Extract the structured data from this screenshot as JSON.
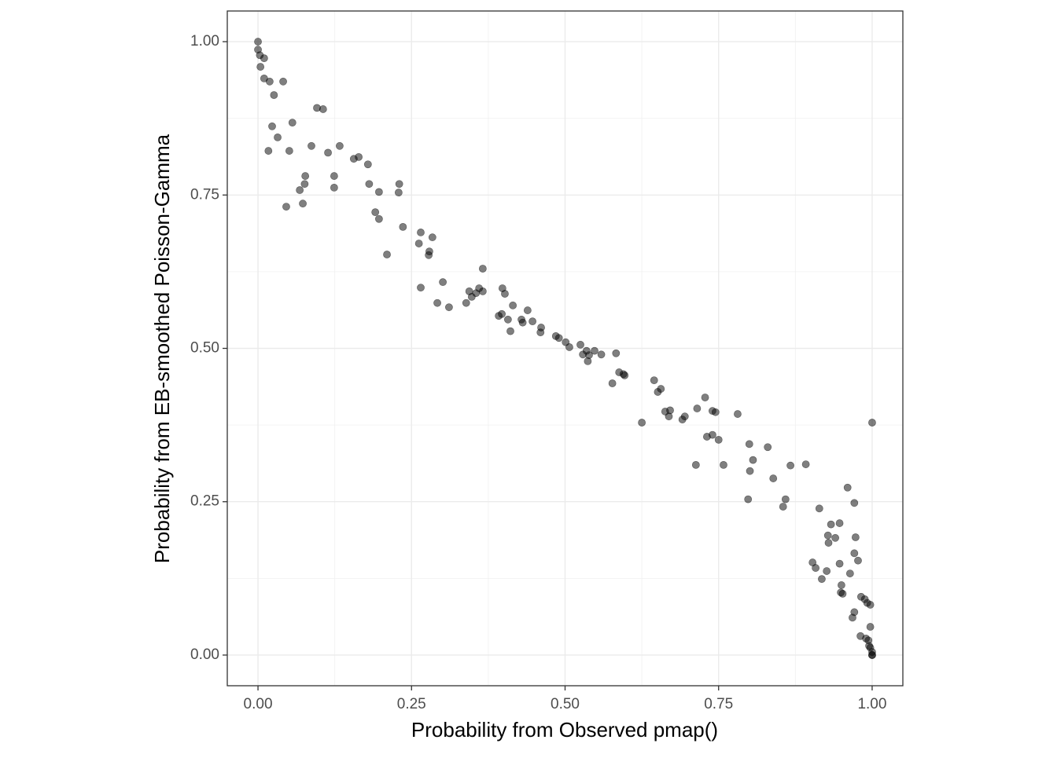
{
  "chart_data": {
    "type": "scatter",
    "xlabel": "Probability from Observed pmap()",
    "ylabel": "Probability from EB-smoothed Poisson-Gamma",
    "color": "#000000",
    "opacity": 0.5,
    "grid": true,
    "xlim": [
      -0.05,
      1.05
    ],
    "ylim": [
      -0.05,
      1.05
    ],
    "xticks": [
      {
        "value": 0,
        "label": "0.00"
      },
      {
        "value": 0.25,
        "label": "0.25"
      },
      {
        "value": 0.5,
        "label": "0.50"
      },
      {
        "value": 0.75,
        "label": "0.75"
      },
      {
        "value": 1,
        "label": "1.00"
      }
    ],
    "yticks": [
      {
        "value": 0,
        "label": "0.00"
      },
      {
        "value": 0.25,
        "label": "0.25"
      },
      {
        "value": 0.5,
        "label": "0.50"
      },
      {
        "value": 0.75,
        "label": "0.75"
      },
      {
        "value": 1,
        "label": "1.00"
      }
    ],
    "xminorticks": [
      0.125,
      0.375,
      0.625,
      0.875
    ],
    "yminorticks": [
      0.125,
      0.375,
      0.625,
      0.875
    ],
    "x": [
      0,
      0,
      0.003,
      0.01,
      0.004,
      0.01,
      0.019,
      0.041,
      0.026,
      0.096,
      0.106,
      0.023,
      0.056,
      0.032,
      0.017,
      0.051,
      0.087,
      0.114,
      0.133,
      0.156,
      0.164,
      0.179,
      0.077,
      0.124,
      0.076,
      0.181,
      0.23,
      0.068,
      0.124,
      0.197,
      0.229,
      0.046,
      0.073,
      0.191,
      0.197,
      0.236,
      0.265,
      0.284,
      0.262,
      0.279,
      0.278,
      0.21,
      0.366,
      0.301,
      0.265,
      0.36,
      0.355,
      0.344,
      0.348,
      0.366,
      0.398,
      0.402,
      0.292,
      0.311,
      0.339,
      0.415,
      0.397,
      0.392,
      0.407,
      0.439,
      0.429,
      0.431,
      0.447,
      0.461,
      0.46,
      0.411,
      0.485,
      0.49,
      0.501,
      0.507,
      0.525,
      0.535,
      0.548,
      0.529,
      0.539,
      0.559,
      0.583,
      0.537,
      0.577,
      0.588,
      0.595,
      0.597,
      0.625,
      0.645,
      0.656,
      0.651,
      0.663,
      0.671,
      0.669,
      0.691,
      0.695,
      0.728,
      0.715,
      0.74,
      0.745,
      0.781,
      0.731,
      0.74,
      0.75,
      0.713,
      0.758,
      0.8,
      0.806,
      0.83,
      0.801,
      0.839,
      0.867,
      0.892,
      0.798,
      0.859,
      0.855,
      0.914,
      0.96,
      0.971,
      0.928,
      0.933,
      0.947,
      0.94,
      0.929,
      0.973,
      0.903,
      0.908,
      0.918,
      0.926,
      0.947,
      0.971,
      0.977,
      0.964,
      0.95,
      0.949,
      0.952,
      0.982,
      0.988,
      0.992,
      0.997,
      0.971,
      0.968,
      0.981,
      0.99,
      0.994,
      0.997,
      0.995,
      0.997,
      1,
      1,
      1,
      1
    ],
    "y": [
      1,
      0.987,
      0.978,
      0.973,
      0.959,
      0.94,
      0.935,
      0.935,
      0.913,
      0.892,
      0.89,
      0.862,
      0.868,
      0.844,
      0.822,
      0.822,
      0.83,
      0.819,
      0.83,
      0.809,
      0.812,
      0.8,
      0.781,
      0.781,
      0.768,
      0.768,
      0.768,
      0.758,
      0.762,
      0.755,
      0.754,
      0.731,
      0.736,
      0.722,
      0.711,
      0.698,
      0.689,
      0.681,
      0.671,
      0.658,
      0.652,
      0.653,
      0.63,
      0.608,
      0.599,
      0.598,
      0.59,
      0.593,
      0.584,
      0.593,
      0.598,
      0.589,
      0.574,
      0.567,
      0.574,
      0.57,
      0.556,
      0.553,
      0.547,
      0.562,
      0.547,
      0.542,
      0.544,
      0.534,
      0.526,
      0.528,
      0.52,
      0.517,
      0.51,
      0.502,
      0.506,
      0.496,
      0.496,
      0.49,
      0.489,
      0.49,
      0.492,
      0.479,
      0.443,
      0.461,
      0.458,
      0.456,
      0.379,
      0.448,
      0.434,
      0.429,
      0.397,
      0.399,
      0.389,
      0.384,
      0.389,
      0.42,
      0.402,
      0.398,
      0.396,
      0.393,
      0.356,
      0.359,
      0.351,
      0.31,
      0.31,
      0.344,
      0.318,
      0.339,
      0.3,
      0.288,
      0.309,
      0.311,
      0.254,
      0.254,
      0.242,
      0.239,
      0.273,
      0.248,
      0.195,
      0.213,
      0.215,
      0.191,
      0.183,
      0.192,
      0.151,
      0.142,
      0.124,
      0.137,
      0.149,
      0.166,
      0.154,
      0.133,
      0.114,
      0.102,
      0.1,
      0.095,
      0.091,
      0.085,
      0.082,
      0.07,
      0.061,
      0.031,
      0.027,
      0.024,
      0.046,
      0.015,
      0.012,
      0.005,
      0,
      0,
      0.379
    ]
  }
}
